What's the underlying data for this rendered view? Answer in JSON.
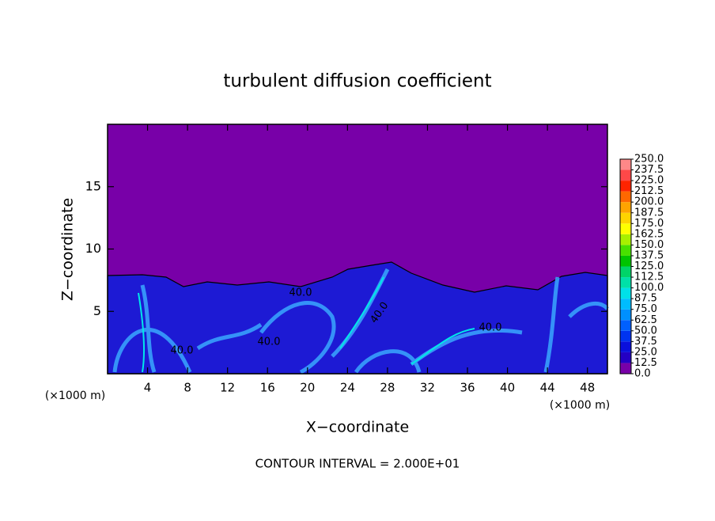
{
  "chart_data": {
    "type": "contour",
    "title": "turbulent diffusion coefficient",
    "x_label": "X−coordinate",
    "y_label": "Z−coordinate",
    "x_unit": "(×1000 m)",
    "footer": "CONTOUR INTERVAL = 2.000E+01",
    "contour_label": "40.0",
    "xlim": [
      0,
      50
    ],
    "xticks": [
      4,
      8,
      12,
      16,
      20,
      24,
      28,
      32,
      36,
      40,
      44,
      48
    ],
    "ylim": [
      0,
      20
    ],
    "yticks": [
      5,
      10,
      15
    ],
    "colorbar": {
      "levels": [
        {
          "value": 0,
          "label": "0.0"
        },
        {
          "value": 12.5,
          "label": "12.5"
        },
        {
          "value": 25,
          "label": "25.0"
        },
        {
          "value": 37.5,
          "label": "37.5"
        },
        {
          "value": 50,
          "label": "50.0"
        },
        {
          "value": 62.5,
          "label": "62.5"
        },
        {
          "value": 75,
          "label": "75.0"
        },
        {
          "value": 87.5,
          "label": "87.5"
        },
        {
          "value": 100,
          "label": "100.0"
        },
        {
          "value": 112.5,
          "label": "112.5"
        },
        {
          "value": 125,
          "label": "125.0"
        },
        {
          "value": 137.5,
          "label": "137.5"
        },
        {
          "value": 150,
          "label": "150.0"
        },
        {
          "value": 162.5,
          "label": "162.5"
        },
        {
          "value": 175,
          "label": "175.0"
        },
        {
          "value": 187.5,
          "label": "187.5"
        },
        {
          "value": 200,
          "label": "200.0"
        },
        {
          "value": 212.5,
          "label": "212.5"
        },
        {
          "value": 225,
          "label": "225.0"
        },
        {
          "value": 237.5,
          "label": "237.5"
        },
        {
          "value": 250,
          "label": "250.0"
        }
      ],
      "colors": [
        "#7800a8",
        "#2400c4",
        "#0a10dc",
        "#0034f0",
        "#0060ff",
        "#0090ff",
        "#00bcff",
        "#00e0e8",
        "#00e0a8",
        "#00d468",
        "#00c400",
        "#48e000",
        "#a8f000",
        "#ffff00",
        "#ffd400",
        "#ffa400",
        "#ff6800",
        "#ff2400",
        "#ff4848",
        "#ff8888"
      ]
    }
  }
}
